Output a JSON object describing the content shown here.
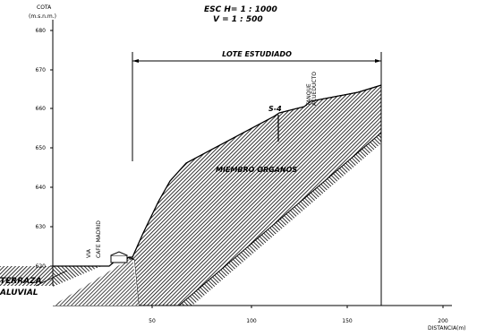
{
  "scale": {
    "horizontal": "ESC H= 1 : 1000",
    "vertical": "V = 1 : 500"
  },
  "axes": {
    "y_title": "COTA",
    "y_unit": "(m.s.n.m.)",
    "x_title": "DISTANCIA",
    "x_unit": "(m)",
    "y_ticks": [
      "620",
      "630",
      "640",
      "650",
      "660",
      "670",
      "680"
    ],
    "x_ticks": [
      "50",
      "100",
      "150",
      "200"
    ]
  },
  "labels": {
    "lot": "LOTE ESTUDIADO",
    "tank_1": "TANQUE",
    "tank_2": "ACUEDUCTO",
    "borehole": "S-4",
    "unit_main": "MIEMBRO ORGANOS",
    "terrace_1": "TERRAZA",
    "terrace_2": "ALUVIAL",
    "road_1": "VIA",
    "road_2": "CAFE  MADRID"
  },
  "colors": {
    "line": "#000000",
    "fill": "#ffffff"
  }
}
